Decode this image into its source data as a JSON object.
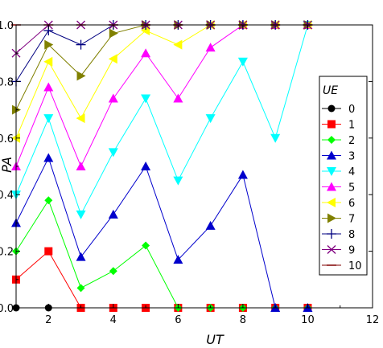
{
  "chart_data": {
    "type": "line",
    "xlabel": "UT",
    "ylabel": "PA",
    "xlim": [
      1,
      12
    ],
    "ylim": [
      0,
      1
    ],
    "xticks": [
      "2",
      "4",
      "6",
      "8",
      "10",
      "12"
    ],
    "yticks": [
      "0.0",
      "0.2",
      "0.4",
      "0.6",
      "0.8",
      "1.0"
    ],
    "legend": {
      "title": "UE",
      "placement": "right"
    },
    "x": [
      1,
      2,
      3,
      4,
      5,
      6,
      7,
      8,
      9,
      10
    ],
    "series": [
      {
        "name": "0",
        "color": "#000000",
        "marker": "circle",
        "values": [
          0,
          0,
          0,
          0,
          0,
          0,
          0,
          0,
          0,
          0
        ]
      },
      {
        "name": "1",
        "color": "#ff0000",
        "marker": "square",
        "values": [
          0.1,
          0.2,
          0,
          0,
          0,
          0,
          0,
          0,
          0,
          0
        ]
      },
      {
        "name": "2",
        "color": "#00ff00",
        "marker": "diamond",
        "values": [
          0.2,
          0.38,
          0.07,
          0.13,
          0.22,
          0,
          0,
          0,
          0,
          0
        ]
      },
      {
        "name": "3",
        "color": "#0000cc",
        "marker": "triangle-up",
        "values": [
          0.3,
          0.53,
          0.18,
          0.33,
          0.5,
          0.17,
          0.29,
          0.47,
          0,
          0
        ]
      },
      {
        "name": "4",
        "color": "#00ffff",
        "marker": "triangle-down",
        "values": [
          0.4,
          0.67,
          0.33,
          0.55,
          0.74,
          0.45,
          0.67,
          0.87,
          0.6,
          1.0
        ]
      },
      {
        "name": "5",
        "color": "#ff00ff",
        "marker": "triangle-up",
        "values": [
          0.5,
          0.78,
          0.5,
          0.74,
          0.9,
          0.74,
          0.92,
          1.0,
          1.0,
          1.0
        ]
      },
      {
        "name": "6",
        "color": "#ffff00",
        "marker": "triangle-left",
        "values": [
          0.6,
          0.87,
          0.67,
          0.88,
          0.98,
          0.93,
          1.0,
          1.0,
          1.0,
          1.0
        ]
      },
      {
        "name": "7",
        "color": "#808000",
        "marker": "triangle-right",
        "values": [
          0.7,
          0.93,
          0.82,
          0.97,
          1.0,
          1.0,
          1.0,
          1.0,
          1.0,
          1.0
        ]
      },
      {
        "name": "8",
        "color": "#000080",
        "marker": "plus",
        "values": [
          0.8,
          0.98,
          0.93,
          1.0,
          1.0,
          1.0,
          1.0,
          1.0,
          1.0,
          1.0
        ]
      },
      {
        "name": "9",
        "color": "#800080",
        "marker": "x",
        "values": [
          0.9,
          1.0,
          1.0,
          1.0,
          1.0,
          1.0,
          1.0,
          1.0,
          1.0,
          1.0
        ]
      },
      {
        "name": "10",
        "color": "#800000",
        "marker": "dash",
        "values": [
          1.0,
          1.0,
          1.0,
          1.0,
          1.0,
          1.0,
          1.0,
          1.0,
          1.0,
          1.0
        ]
      }
    ]
  }
}
